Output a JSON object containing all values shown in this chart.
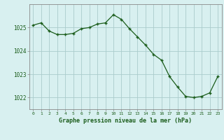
{
  "x": [
    0,
    1,
    2,
    3,
    4,
    5,
    6,
    7,
    8,
    9,
    10,
    11,
    12,
    13,
    14,
    15,
    16,
    17,
    18,
    19,
    20,
    21,
    22,
    23
  ],
  "y": [
    1025.1,
    1025.2,
    1024.85,
    1024.7,
    1024.7,
    1024.75,
    1024.95,
    1025.0,
    1025.15,
    1025.2,
    1025.55,
    1025.35,
    1024.95,
    1024.6,
    1024.25,
    1023.85,
    1023.6,
    1022.9,
    1022.45,
    1022.05,
    1022.0,
    1022.05,
    1022.2,
    1022.9
  ],
  "line_color": "#1a5c1a",
  "marker_color": "#1a5c1a",
  "bg_color": "#d8f0f0",
  "grid_color": "#aacccc",
  "xlabel": "Graphe pression niveau de la mer (hPa)",
  "xlabel_color": "#1a5c1a",
  "tick_color": "#1a5c1a",
  "ylim": [
    1021.5,
    1026.0
  ],
  "xlim": [
    -0.5,
    23.5
  ],
  "yticks": [
    1022,
    1023,
    1024,
    1025
  ],
  "xticks": [
    0,
    1,
    2,
    3,
    4,
    5,
    6,
    7,
    8,
    9,
    10,
    11,
    12,
    13,
    14,
    15,
    16,
    17,
    18,
    19,
    20,
    21,
    22,
    23
  ]
}
